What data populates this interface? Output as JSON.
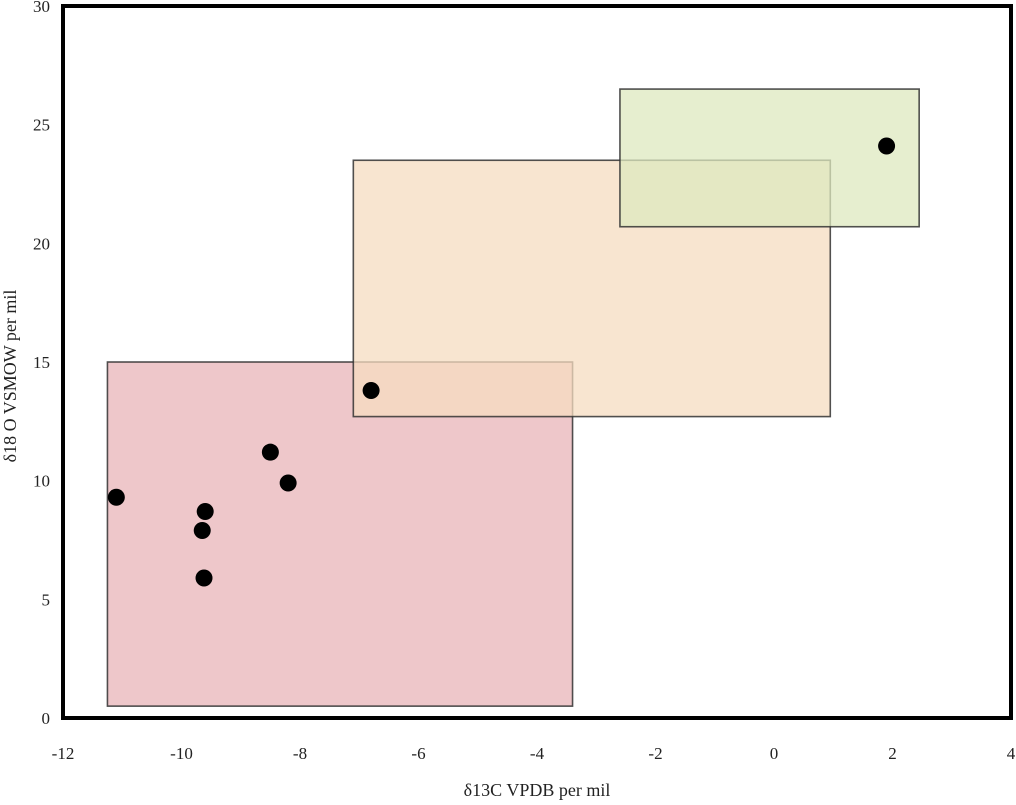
{
  "chart_data": {
    "type": "scatter",
    "title": "",
    "xlabel": "δ13C VPDB per mil",
    "ylabel": "δ18 O VSMOW per mil",
    "xlim": [
      -12,
      4
    ],
    "ylim": [
      0,
      30
    ],
    "xticks": [
      "-12",
      "-10",
      "-8",
      "-6",
      "-4",
      "-2",
      "0",
      "2",
      "4"
    ],
    "yticks": [
      "0",
      "5",
      "10",
      "15",
      "20",
      "25",
      "30"
    ],
    "grid": false,
    "legend": "none",
    "regions": [
      {
        "x": [
          -11.25,
          -3.4
        ],
        "y": [
          0.5,
          15.0
        ],
        "color": "#e8b4b8"
      },
      {
        "x": [
          -7.1,
          0.95
        ],
        "y": [
          12.7,
          23.5
        ],
        "color": "#f5dcc0"
      },
      {
        "x": [
          -2.6,
          2.45
        ],
        "y": [
          20.7,
          26.5
        ],
        "color": "#dde8bf"
      }
    ],
    "points": [
      {
        "x": -11.1,
        "y": 9.3
      },
      {
        "x": -9.6,
        "y": 8.7
      },
      {
        "x": -9.65,
        "y": 7.9
      },
      {
        "x": -9.62,
        "y": 5.9
      },
      {
        "x": -8.5,
        "y": 11.2
      },
      {
        "x": -8.2,
        "y": 9.9
      },
      {
        "x": -6.8,
        "y": 13.8
      },
      {
        "x": 1.9,
        "y": 24.1
      }
    ],
    "point_color": "#000000"
  }
}
